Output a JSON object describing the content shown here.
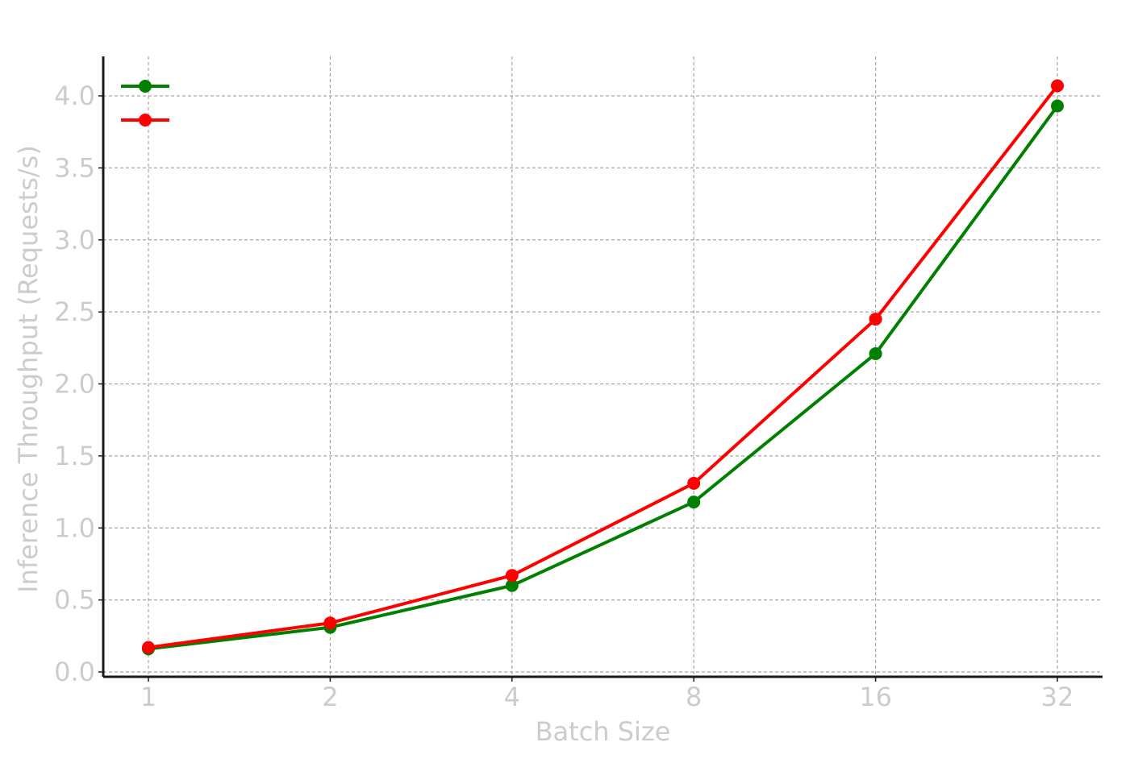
{
  "chart_data": {
    "type": "line",
    "title": "",
    "xlabel": "Batch Size",
    "ylabel": "Inference Throughput (Requests/s)",
    "categories": [
      "1",
      "2",
      "4",
      "8",
      "16",
      "32"
    ],
    "x": [
      1,
      2,
      4,
      8,
      16,
      32
    ],
    "x_scale": "log2",
    "ylim": [
      0,
      4.2
    ],
    "yticks": [
      "0.0",
      "0.5",
      "1.0",
      "1.5",
      "2.0",
      "2.5",
      "3.0",
      "3.5",
      "4.0"
    ],
    "grid": true,
    "legend_placement": "top-left",
    "series": [
      {
        "name": "",
        "color": "#008000",
        "values": [
          0.16,
          0.31,
          0.6,
          1.18,
          2.21,
          3.93
        ]
      },
      {
        "name": "",
        "color": "#ff0000",
        "values": [
          0.17,
          0.34,
          0.67,
          1.31,
          2.45,
          4.07
        ]
      }
    ]
  }
}
